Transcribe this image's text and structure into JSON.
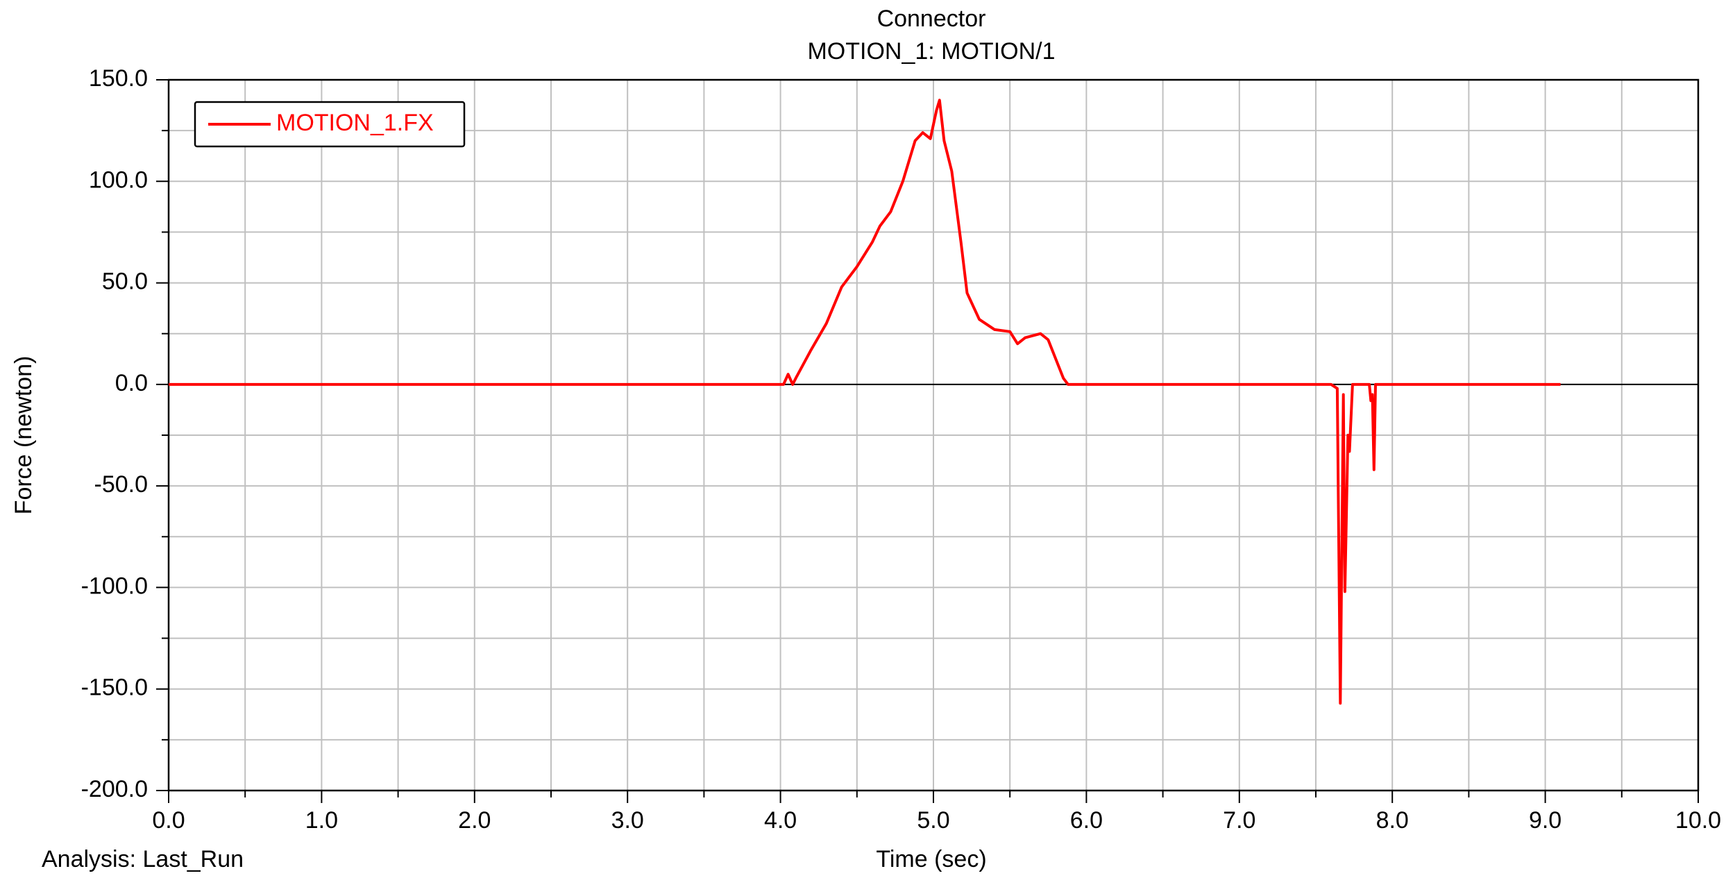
{
  "chart_data": {
    "type": "line",
    "title": "Connector",
    "subtitle": "MOTION_1: MOTION/1",
    "x_label": "Time (sec)",
    "y_label": "Force (newton)",
    "annotation": "Analysis:  Last_Run",
    "x": [
      0,
      4.0,
      4.02,
      4.05,
      4.08,
      4.1,
      4.2,
      4.3,
      4.4,
      4.5,
      4.6,
      4.65,
      4.72,
      4.8,
      4.88,
      4.93,
      4.98,
      5.02,
      5.04,
      5.07,
      5.12,
      5.18,
      5.22,
      5.3,
      5.4,
      5.5,
      5.55,
      5.6,
      5.7,
      5.75,
      5.85,
      5.88,
      7.6,
      7.64,
      7.66,
      7.68,
      7.69,
      7.71,
      7.72,
      7.74,
      7.85,
      7.86,
      7.87,
      7.88,
      7.89,
      9.1
    ],
    "series": [
      {
        "name": "MOTION_1.FX",
        "color": "#ff0000",
        "values": [
          0,
          0,
          0,
          5,
          0,
          3,
          17,
          30,
          48,
          58,
          70,
          78,
          85,
          100,
          120,
          124,
          121,
          135,
          140,
          120,
          105,
          70,
          45,
          32,
          27,
          26,
          20,
          23,
          25,
          22,
          3,
          0,
          0,
          -2,
          -157,
          -5,
          -102,
          -25,
          -33,
          0,
          0,
          -8,
          -5,
          -42,
          0,
          0
        ]
      }
    ],
    "xlim": [
      0,
      10
    ],
    "ylim": [
      -200,
      150
    ],
    "xticks": [
      {
        "value": 0,
        "label": "0.0"
      },
      {
        "value": 1,
        "label": "1.0"
      },
      {
        "value": 2,
        "label": "2.0"
      },
      {
        "value": 3,
        "label": "3.0"
      },
      {
        "value": 4,
        "label": "4.0"
      },
      {
        "value": 5,
        "label": "5.0"
      },
      {
        "value": 6,
        "label": "6.0"
      },
      {
        "value": 7,
        "label": "7.0"
      },
      {
        "value": 8,
        "label": "8.0"
      },
      {
        "value": 9,
        "label": "9.0"
      },
      {
        "value": 10,
        "label": "10.0"
      }
    ],
    "yticks": [
      {
        "value": -200,
        "label": "-200.0"
      },
      {
        "value": -150,
        "label": "-150.0"
      },
      {
        "value": -100,
        "label": "-100.0"
      },
      {
        "value": -50,
        "label": "-50.0"
      },
      {
        "value": 0,
        "label": "0.0"
      },
      {
        "value": 50,
        "label": "50.0"
      },
      {
        "value": 100,
        "label": "100.0"
      },
      {
        "value": 150,
        "label": "150.0"
      }
    ],
    "x_minor_ticks": [
      0.5,
      1.5,
      2.5,
      3.5,
      4.5,
      5.5,
      6.5,
      7.5,
      8.5,
      9.5
    ],
    "y_minor_ticks": [
      -175,
      -125,
      -75,
      -25,
      25,
      75,
      125
    ],
    "grid": true,
    "legend": "upper left"
  }
}
